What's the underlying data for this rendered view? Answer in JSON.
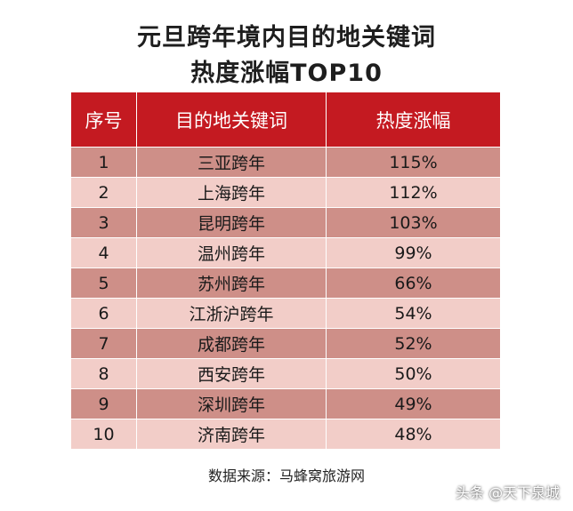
{
  "chart_data": {
    "type": "table",
    "title_lines": [
      "元旦跨年境内目的地关键词",
      "热度涨幅TOP10"
    ],
    "columns": [
      "序号",
      "目的地关键词",
      "热度涨幅"
    ],
    "rows": [
      [
        "1",
        "三亚跨年",
        "115%"
      ],
      [
        "2",
        "上海跨年",
        "112%"
      ],
      [
        "3",
        "昆明跨年",
        "103%"
      ],
      [
        "4",
        "温州跨年",
        "99%"
      ],
      [
        "5",
        "苏州跨年",
        "66%"
      ],
      [
        "6",
        "江浙沪跨年",
        "54%"
      ],
      [
        "7",
        "成都跨年",
        "52%"
      ],
      [
        "8",
        "西安跨年",
        "50%"
      ],
      [
        "9",
        "深圳跨年",
        "49%"
      ],
      [
        "10",
        "济南跨年",
        "48%"
      ]
    ],
    "values": [
      115,
      112,
      103,
      99,
      66,
      54,
      52,
      50,
      49,
      48
    ],
    "colors": {
      "header": "#c41a21",
      "row_odd": "#ce8f88",
      "row_even": "#f2cdc8"
    }
  },
  "source": "数据来源：马蜂窝旅游网",
  "watermark": "头条 @天下泉城"
}
